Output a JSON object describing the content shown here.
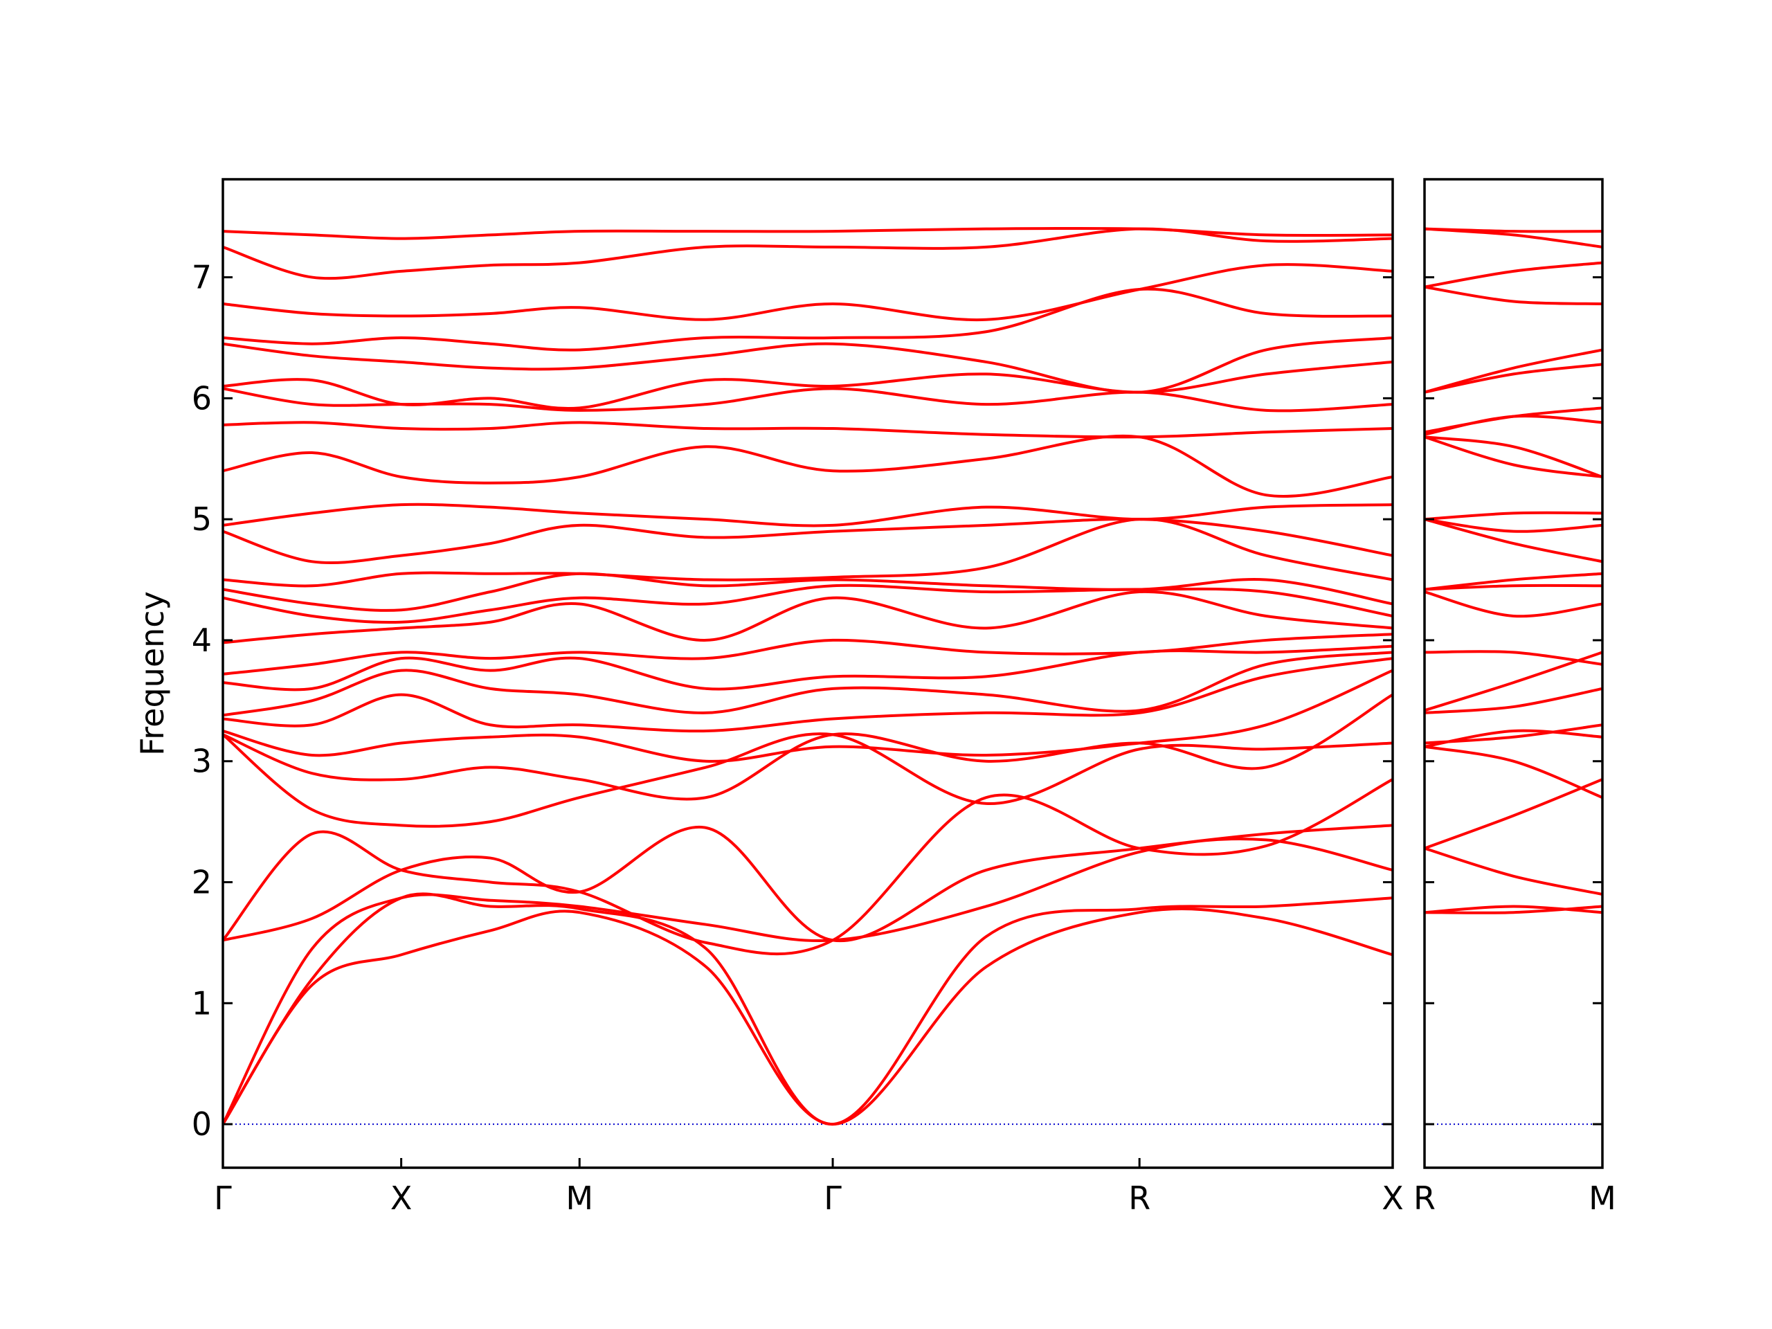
{
  "chart_data": [
    {
      "type": "line",
      "ylabel": "Frequency",
      "color": "#ff0000",
      "x": [
        0,
        0.25,
        0.5,
        0.75,
        1.0,
        1.355,
        1.71,
        2.14,
        2.57,
        2.925,
        3.28
      ],
      "xlim": [
        0,
        3.28
      ],
      "xticks": [
        {
          "value": 0,
          "label": "Γ"
        },
        {
          "value": 0.5,
          "label": "X"
        },
        {
          "value": 1.0,
          "label": "M"
        },
        {
          "value": 1.71,
          "label": "Γ"
        },
        {
          "value": 2.57,
          "label": "R"
        },
        {
          "value": 3.28,
          "label": "X"
        }
      ],
      "ylim": [
        -0.36,
        7.81
      ],
      "yticks": [
        0,
        1,
        2,
        3,
        4,
        5,
        6,
        7
      ],
      "zero_line": {
        "value": 0,
        "color": "#0000cc"
      },
      "series": [
        {
          "values": [
            0,
            1.15,
            1.4,
            1.6,
            1.75,
            1.3,
            0,
            1.3,
            1.75,
            1.7,
            1.4
          ]
        },
        {
          "values": [
            0,
            1.2,
            1.87,
            1.8,
            1.78,
            1.45,
            0,
            1.55,
            1.78,
            1.8,
            1.87
          ]
        },
        {
          "values": [
            0,
            1.45,
            1.87,
            1.85,
            1.8,
            1.65,
            1.52,
            1.8,
            2.25,
            2.35,
            2.1
          ]
        },
        {
          "values": [
            1.52,
            1.7,
            2.1,
            2.2,
            1.92,
            2.45,
            1.52,
            2.1,
            2.28,
            2.4,
            2.47
          ]
        },
        {
          "values": [
            1.52,
            2.4,
            2.1,
            2.0,
            1.92,
            1.5,
            1.52,
            2.7,
            2.28,
            2.3,
            2.85
          ]
        },
        {
          "values": [
            3.22,
            2.6,
            2.47,
            2.5,
            2.7,
            2.95,
            3.22,
            2.65,
            3.1,
            3.1,
            3.15
          ]
        },
        {
          "values": [
            3.22,
            2.9,
            2.85,
            2.95,
            2.85,
            2.7,
            3.22,
            3.0,
            3.15,
            2.95,
            3.55
          ]
        },
        {
          "values": [
            3.25,
            3.05,
            3.15,
            3.2,
            3.2,
            3.0,
            3.12,
            3.05,
            3.15,
            3.3,
            3.75
          ]
        },
        {
          "values": [
            3.35,
            3.3,
            3.55,
            3.3,
            3.3,
            3.25,
            3.35,
            3.4,
            3.4,
            3.7,
            3.85
          ]
        },
        {
          "values": [
            3.38,
            3.5,
            3.75,
            3.6,
            3.55,
            3.4,
            3.6,
            3.55,
            3.42,
            3.8,
            3.9
          ]
        },
        {
          "values": [
            3.65,
            3.6,
            3.85,
            3.75,
            3.85,
            3.6,
            3.7,
            3.7,
            3.9,
            3.9,
            3.95
          ]
        },
        {
          "values": [
            3.72,
            3.8,
            3.9,
            3.85,
            3.9,
            3.85,
            4.0,
            3.9,
            3.9,
            4.0,
            4.05
          ]
        },
        {
          "values": [
            3.98,
            4.05,
            4.1,
            4.15,
            4.3,
            4.0,
            4.35,
            4.1,
            4.4,
            4.2,
            4.1
          ]
        },
        {
          "values": [
            4.35,
            4.2,
            4.15,
            4.25,
            4.35,
            4.3,
            4.45,
            4.4,
            4.42,
            4.4,
            4.2
          ]
        },
        {
          "values": [
            4.42,
            4.3,
            4.25,
            4.4,
            4.55,
            4.45,
            4.5,
            4.45,
            4.42,
            4.5,
            4.3
          ]
        },
        {
          "values": [
            4.5,
            4.45,
            4.55,
            4.55,
            4.55,
            4.5,
            4.52,
            4.6,
            5.0,
            4.7,
            4.5
          ]
        },
        {
          "values": [
            4.9,
            4.65,
            4.7,
            4.8,
            4.95,
            4.85,
            4.9,
            4.95,
            5.0,
            4.9,
            4.7
          ]
        },
        {
          "values": [
            4.95,
            5.05,
            5.12,
            5.1,
            5.05,
            5.0,
            4.95,
            5.1,
            5.0,
            5.1,
            5.12
          ]
        },
        {
          "values": [
            5.4,
            5.55,
            5.35,
            5.3,
            5.35,
            5.6,
            5.4,
            5.5,
            5.68,
            5.2,
            5.35
          ]
        },
        {
          "values": [
            5.78,
            5.8,
            5.75,
            5.75,
            5.8,
            5.75,
            5.75,
            5.7,
            5.68,
            5.72,
            5.75
          ]
        },
        {
          "values": [
            6.08,
            5.95,
            5.95,
            5.95,
            5.9,
            5.95,
            6.08,
            5.95,
            6.05,
            5.9,
            5.95
          ]
        },
        {
          "values": [
            6.1,
            6.15,
            5.95,
            6.0,
            5.92,
            6.15,
            6.1,
            6.2,
            6.05,
            6.2,
            6.3
          ]
        },
        {
          "values": [
            6.45,
            6.35,
            6.3,
            6.25,
            6.25,
            6.35,
            6.45,
            6.3,
            6.05,
            6.4,
            6.5
          ]
        },
        {
          "values": [
            6.5,
            6.45,
            6.5,
            6.45,
            6.4,
            6.5,
            6.5,
            6.55,
            6.9,
            6.7,
            6.68
          ]
        },
        {
          "values": [
            6.78,
            6.7,
            6.68,
            6.7,
            6.75,
            6.65,
            6.78,
            6.65,
            6.9,
            7.1,
            7.05
          ]
        },
        {
          "values": [
            7.25,
            7.0,
            7.05,
            7.1,
            7.12,
            7.25,
            7.25,
            7.25,
            7.4,
            7.3,
            7.32
          ]
        },
        {
          "values": [
            7.38,
            7.35,
            7.32,
            7.35,
            7.38,
            7.38,
            7.38,
            7.4,
            7.4,
            7.35,
            7.35
          ]
        }
      ]
    },
    {
      "type": "line",
      "color": "#ff0000",
      "x": [
        0,
        0.25,
        0.5
      ],
      "xlim": [
        0,
        0.5
      ],
      "xticks": [
        {
          "value": 0,
          "label": "R"
        },
        {
          "value": 0.5,
          "label": "M"
        }
      ],
      "ylim": [
        -0.36,
        7.81
      ],
      "yticks": [
        0,
        1,
        2,
        3,
        4,
        5,
        6,
        7
      ],
      "zero_line": {
        "value": 0,
        "color": "#0000cc"
      },
      "series": [
        {
          "values": [
            1.75,
            1.75,
            1.8
          ]
        },
        {
          "values": [
            1.75,
            1.8,
            1.75
          ]
        },
        {
          "values": [
            2.28,
            2.05,
            1.9
          ]
        },
        {
          "values": [
            2.28,
            2.55,
            2.85
          ]
        },
        {
          "values": [
            3.12,
            3.0,
            2.7
          ]
        },
        {
          "values": [
            3.12,
            3.25,
            3.2
          ]
        },
        {
          "values": [
            3.15,
            3.2,
            3.3
          ]
        },
        {
          "values": [
            3.4,
            3.45,
            3.6
          ]
        },
        {
          "values": [
            3.42,
            3.65,
            3.9
          ]
        },
        {
          "values": [
            3.9,
            3.9,
            3.8
          ]
        },
        {
          "values": [
            4.4,
            4.2,
            4.3
          ]
        },
        {
          "values": [
            4.42,
            4.45,
            4.45
          ]
        },
        {
          "values": [
            4.42,
            4.5,
            4.55
          ]
        },
        {
          "values": [
            5.0,
            4.8,
            4.65
          ]
        },
        {
          "values": [
            5.0,
            5.05,
            5.05
          ]
        },
        {
          "values": [
            5.0,
            4.9,
            4.95
          ]
        },
        {
          "values": [
            5.68,
            5.45,
            5.35
          ]
        },
        {
          "values": [
            5.68,
            5.6,
            5.35
          ]
        },
        {
          "values": [
            5.7,
            5.85,
            5.8
          ]
        },
        {
          "values": [
            5.72,
            5.85,
            5.92
          ]
        },
        {
          "values": [
            6.05,
            6.2,
            6.28
          ]
        },
        {
          "values": [
            6.05,
            6.25,
            6.4
          ]
        },
        {
          "values": [
            6.92,
            6.8,
            6.78
          ]
        },
        {
          "values": [
            6.92,
            7.05,
            7.12
          ]
        },
        {
          "values": [
            7.4,
            7.35,
            7.25
          ]
        },
        {
          "values": [
            7.4,
            7.38,
            7.38
          ]
        }
      ]
    }
  ]
}
